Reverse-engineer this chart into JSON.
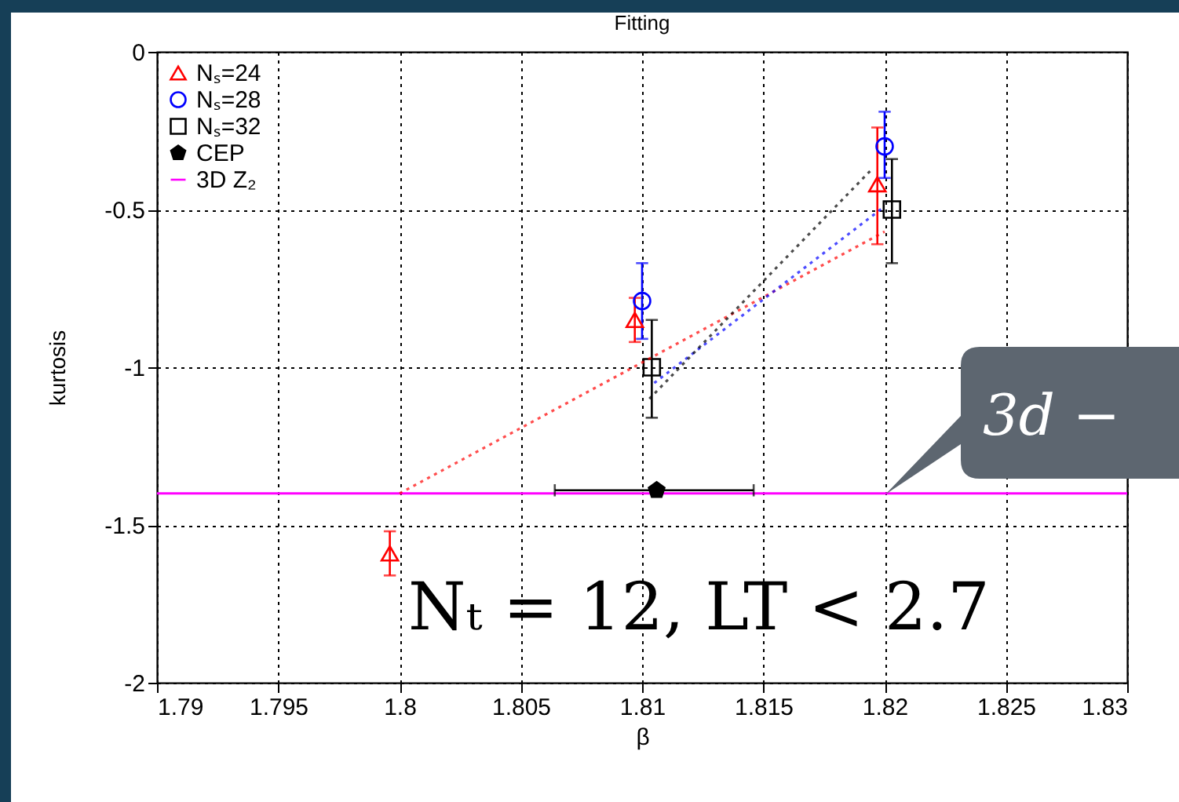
{
  "chart_data": {
    "type": "scatter",
    "title": "Fitting",
    "xlabel": "β",
    "ylabel": "kurtosis",
    "xlim": [
      1.79,
      1.83
    ],
    "xticks": [
      1.79,
      1.795,
      1.8,
      1.805,
      1.81,
      1.815,
      1.82,
      1.825,
      1.83
    ],
    "ylim": [
      -2,
      0
    ],
    "yticks": [
      -2,
      -1.5,
      -1,
      -0.5,
      0
    ],
    "grid": true,
    "legend": "top left",
    "series": [
      {
        "name": "Nₛ=24",
        "color": "#ff0000",
        "marker": "triangle",
        "x": [
          1.7996,
          1.8097,
          1.8197
        ],
        "values": [
          -1.59,
          -0.85,
          -0.42
        ],
        "errors": [
          [
            -1.66,
            -1.52
          ],
          [
            -0.92,
            -0.78
          ],
          [
            -0.61,
            -0.24
          ]
        ]
      },
      {
        "name": "Nₛ=28",
        "color": "#0000ff",
        "marker": "circle",
        "x": [
          1.81,
          1.82
        ],
        "values": [
          -0.79,
          -0.3
        ],
        "errors": [
          [
            -0.91,
            -0.67
          ],
          [
            -0.4,
            -0.19
          ]
        ]
      },
      {
        "name": "Nₛ=32",
        "color": "#000000",
        "marker": "square",
        "x": [
          1.8104,
          1.8203
        ],
        "values": [
          -1.0,
          -0.5
        ],
        "errors": [
          [
            -1.16,
            -0.85
          ],
          [
            -0.67,
            -0.34
          ]
        ]
      },
      {
        "name": "CEP",
        "color": "#000000",
        "x": [
          1.8106
        ],
        "values": [
          -1.39
        ],
        "xerrors": [
          [
            1.8064,
            1.8146
          ]
        ]
      },
      {
        "type": "line",
        "color": "#ff0000",
        "line_style": "dotted",
        "x": [
          1.8,
          1.82
        ],
        "values": [
          -1.4,
          -0.57
        ]
      },
      {
        "type": "line",
        "color": "#0000ff",
        "line_style": "dotted",
        "x": [
          1.8105,
          1.82
        ],
        "values": [
          -1.05,
          -0.49
        ]
      },
      {
        "type": "line",
        "color": "#000000",
        "line_style": "dotted",
        "x": [
          1.8103,
          1.8195
        ],
        "values": [
          -1.1,
          -0.37
        ]
      }
    ],
    "ref_lines": [
      {
        "axis": "y",
        "value": -1.4,
        "label": "3D Z₂",
        "color": "#ff00ff"
      }
    ],
    "annotations": [
      "Nₜ = 12, LT < 2.7",
      {
        "text": "3d −",
        "x": 1.82,
        "y": -1.4
      }
    ]
  }
}
